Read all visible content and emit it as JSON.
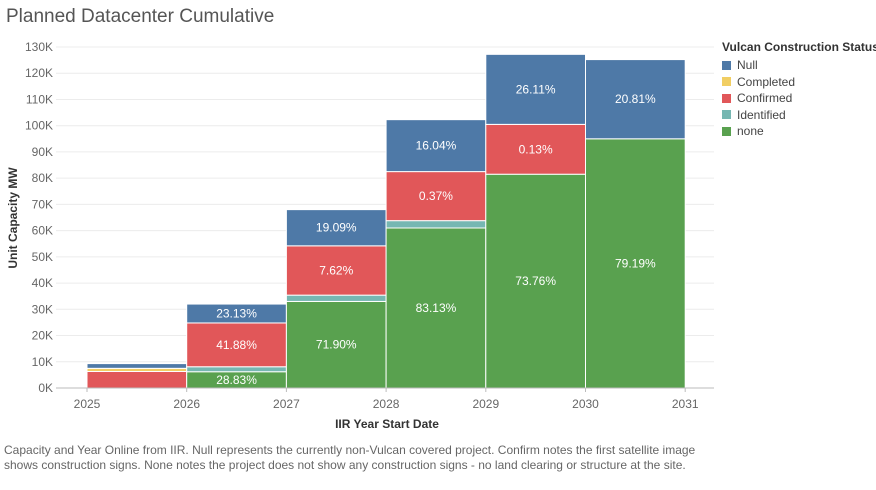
{
  "title": "Planned Datacenter Cumulative",
  "caption": "Capacity and Year Online from IIR. Null represents the currently non-Vulcan covered project.  Confirm notes the first satellite image shows construction signs.  None notes the project does not show any construction signs - no land clearing or structure at the site.",
  "legend": {
    "title": "Vulcan Construction Status",
    "items": [
      {
        "label": "Null",
        "color": "#4e79a7"
      },
      {
        "label": "Completed",
        "color": "#f1ce63"
      },
      {
        "label": "Confirmed",
        "color": "#e15759"
      },
      {
        "label": "Identified",
        "color": "#76b7b2"
      },
      {
        "label": "none",
        "color": "#59a14f"
      }
    ]
  },
  "chart_data": {
    "type": "bar",
    "stacked": true,
    "title": "Planned Datacenter Cumulative",
    "xlabel": "IIR Year Start Date",
    "ylabel": "Unit Capacity MW",
    "ylim": [
      0,
      130000
    ],
    "yticks": [
      "0K",
      "10K",
      "20K",
      "30K",
      "40K",
      "50K",
      "60K",
      "70K",
      "80K",
      "90K",
      "100K",
      "110K",
      "120K",
      "130K"
    ],
    "xticks": [
      "2025",
      "2026",
      "2027",
      "2028",
      "2029",
      "2030",
      "2031"
    ],
    "bins": [
      {
        "start": 2025,
        "end": 2026,
        "segments": [
          {
            "status": "none",
            "value": 0
          },
          {
            "status": "Identified",
            "value": 0
          },
          {
            "status": "Confirmed",
            "value": 6300
          },
          {
            "status": "Completed",
            "value": 1200
          },
          {
            "status": "Null",
            "value": 1800
          }
        ]
      },
      {
        "start": 2026,
        "end": 2027,
        "segments": [
          {
            "status": "none",
            "value": 6200,
            "label": "28.83%"
          },
          {
            "status": "Identified",
            "value": 1900
          },
          {
            "status": "Confirmed",
            "value": 16700,
            "label": "41.88%"
          },
          {
            "status": "Completed",
            "value": 0
          },
          {
            "status": "Null",
            "value": 7200,
            "label": "23.13%"
          }
        ]
      },
      {
        "start": 2027,
        "end": 2028,
        "segments": [
          {
            "status": "none",
            "value": 33000,
            "label": "71.90%"
          },
          {
            "status": "Identified",
            "value": 2400
          },
          {
            "status": "Confirmed",
            "value": 18800,
            "label": "7.62%"
          },
          {
            "status": "Completed",
            "value": 0
          },
          {
            "status": "Null",
            "value": 13800,
            "label": "19.09%"
          }
        ]
      },
      {
        "start": 2028,
        "end": 2029,
        "segments": [
          {
            "status": "none",
            "value": 61000,
            "label": "83.13%"
          },
          {
            "status": "Identified",
            "value": 2800
          },
          {
            "status": "Confirmed",
            "value": 18700,
            "label": "0.37%"
          },
          {
            "status": "Completed",
            "value": 0
          },
          {
            "status": "Null",
            "value": 19800,
            "label": "16.04%"
          }
        ]
      },
      {
        "start": 2029,
        "end": 2030,
        "segments": [
          {
            "status": "none",
            "value": 81500,
            "label": "73.76%"
          },
          {
            "status": "Identified",
            "value": 0
          },
          {
            "status": "Confirmed",
            "value": 19000,
            "label": "0.13%"
          },
          {
            "status": "Completed",
            "value": 0
          },
          {
            "status": "Null",
            "value": 26700,
            "label": "26.11%"
          }
        ]
      },
      {
        "start": 2030,
        "end": 2031,
        "segments": [
          {
            "status": "none",
            "value": 95000,
            "label": "79.19%"
          },
          {
            "status": "Identified",
            "value": 0
          },
          {
            "status": "Confirmed",
            "value": 0
          },
          {
            "status": "Completed",
            "value": 0
          },
          {
            "status": "Null",
            "value": 30200,
            "label": "20.81%"
          }
        ]
      }
    ]
  }
}
